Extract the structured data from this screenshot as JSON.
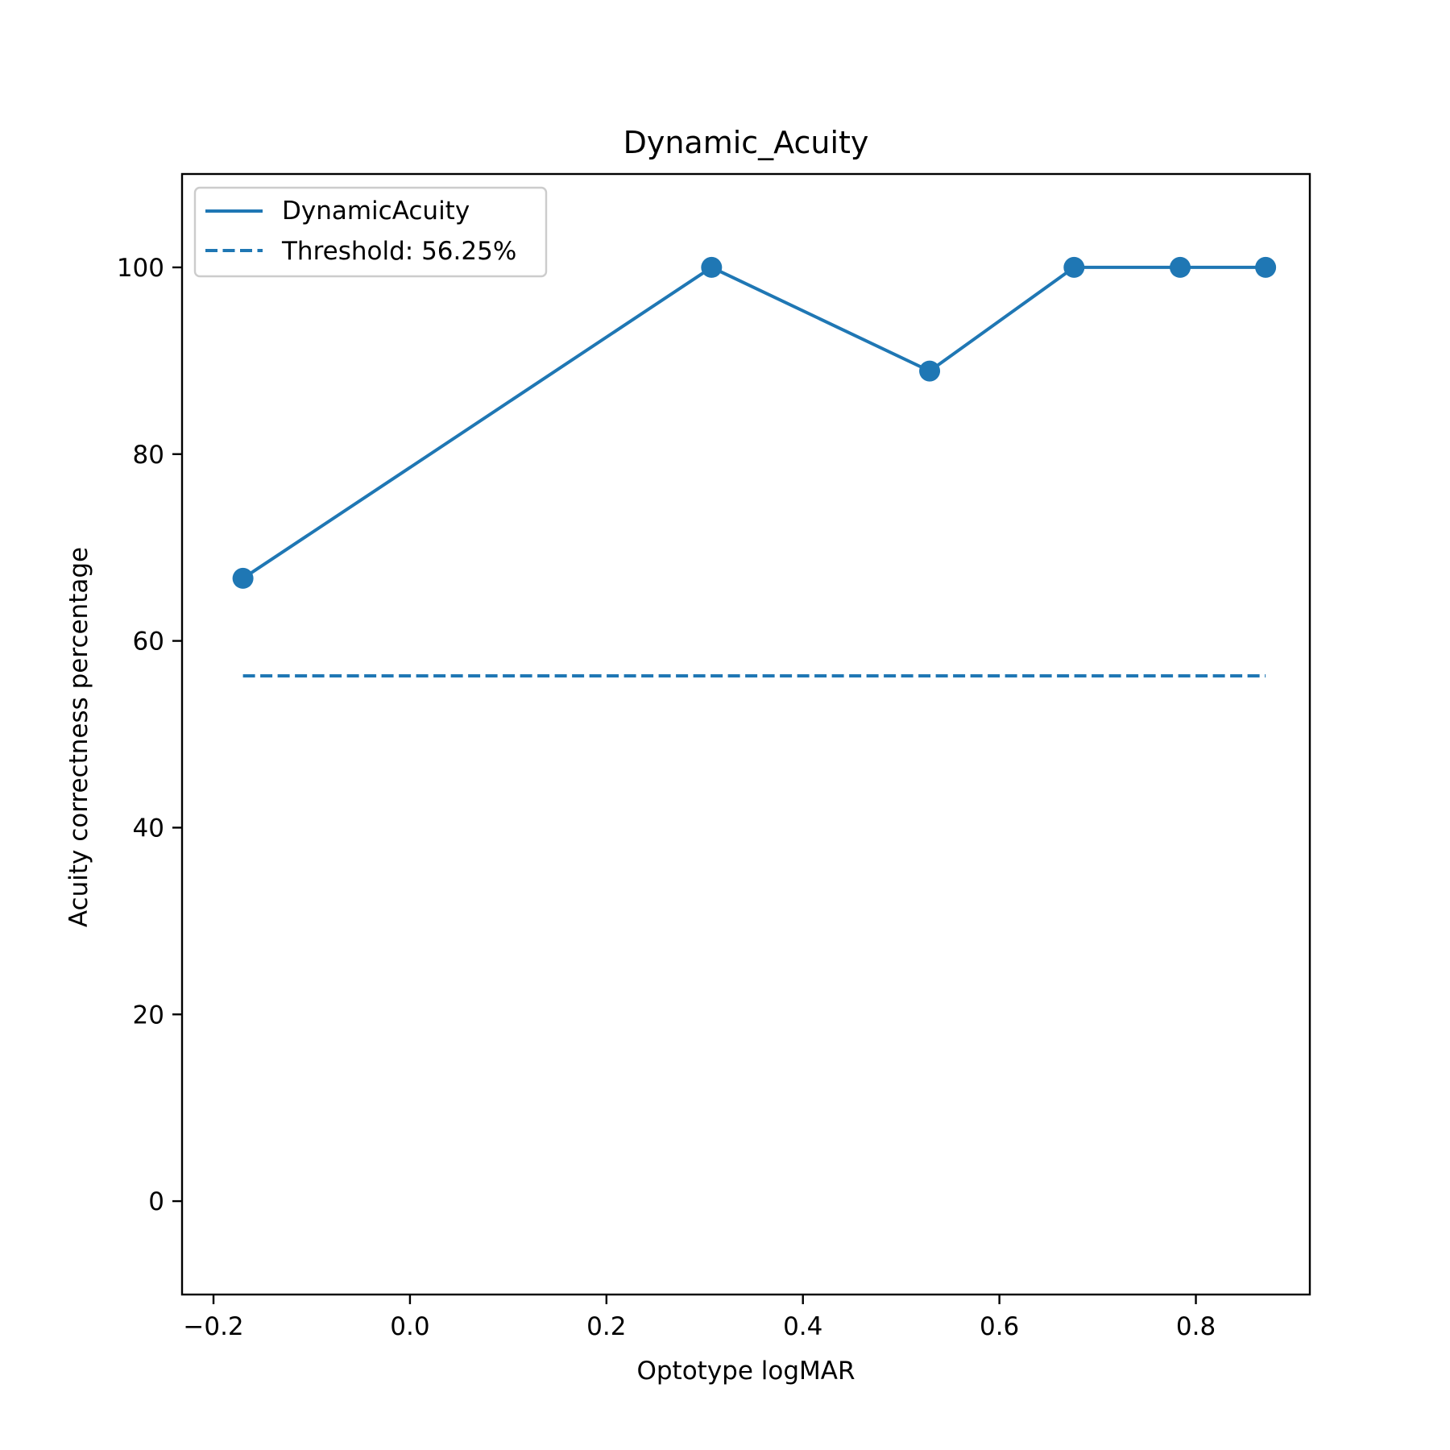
{
  "chart_data": {
    "type": "line",
    "title": "Dynamic_Acuity",
    "xlabel": "Optotype logMAR",
    "ylabel": "Acuity correctness percentage",
    "xlim": [
      -0.232,
      0.916
    ],
    "ylim": [
      -10,
      110
    ],
    "x_ticks": [
      -0.2,
      0.0,
      0.2,
      0.4,
      0.6,
      0.8
    ],
    "x_tick_labels": [
      "−0.2",
      "0.0",
      "0.2",
      "0.4",
      "0.6",
      "0.8"
    ],
    "y_ticks": [
      0,
      20,
      40,
      60,
      80,
      100
    ],
    "y_tick_labels": [
      "0",
      "20",
      "40",
      "60",
      "80",
      "100"
    ],
    "grid": false,
    "legend_position": "top-left",
    "color": "#1f77b4",
    "series": [
      {
        "name": "DynamicAcuity",
        "style": "solid",
        "markers": true,
        "x": [
          -0.17,
          0.307,
          0.529,
          0.676,
          0.784,
          0.871
        ],
        "y": [
          66.7,
          100,
          88.9,
          100,
          100,
          100
        ]
      },
      {
        "name": "Threshold: 56.25%",
        "style": "dashed",
        "markers": false,
        "x": [
          -0.17,
          0.871
        ],
        "y": [
          56.25,
          56.25
        ]
      }
    ]
  }
}
